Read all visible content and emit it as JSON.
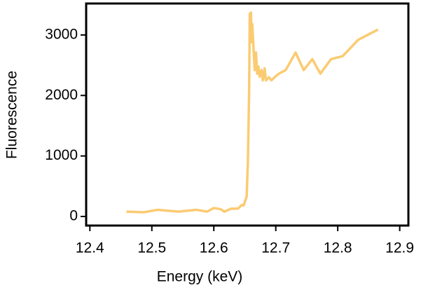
{
  "chart_data": {
    "type": "line",
    "x_label": "Energy (keV)",
    "y_label": "Fluorescence",
    "xlim": [
      12.394,
      12.914
    ],
    "ylim": [
      -150,
      3520
    ],
    "xticks": [
      12.4,
      12.5,
      12.6,
      12.7,
      12.8,
      12.9
    ],
    "yticks": [
      0,
      1000,
      2000,
      3000
    ],
    "x": [
      12.459,
      12.487,
      12.509,
      12.543,
      12.572,
      12.589,
      12.6,
      12.611,
      12.617,
      12.628,
      12.639,
      12.645,
      12.648,
      12.653,
      12.655,
      12.657,
      12.658,
      12.66,
      12.661,
      12.662,
      12.666,
      12.668,
      12.67,
      12.672,
      12.674,
      12.677,
      12.679,
      12.682,
      12.684,
      12.689,
      12.693,
      12.698,
      12.705,
      12.716,
      12.732,
      12.745,
      12.759,
      12.772,
      12.789,
      12.808,
      12.833,
      12.865
    ],
    "series": [
      {
        "color": "#fbcb72",
        "values": [
          80,
          70,
          110,
          80,
          110,
          80,
          140,
          120,
          80,
          130,
          130,
          190,
          180,
          330,
          900,
          2070,
          3350,
          3370,
          2880,
          3180,
          2420,
          2710,
          2360,
          2480,
          2310,
          2420,
          2250,
          2450,
          2250,
          2300,
          2250,
          2300,
          2360,
          2420,
          2710,
          2420,
          2600,
          2360,
          2600,
          2650,
          2920,
          3090
        ]
      }
    ]
  }
}
